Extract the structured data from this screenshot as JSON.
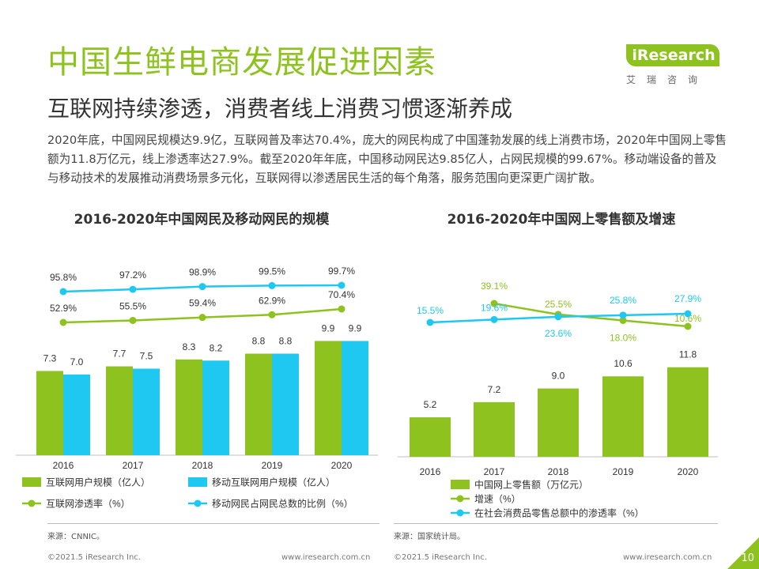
{
  "header": {
    "title": "中国生鲜电商发展促进因素",
    "subtitle": "互联网持续渗透，消费者线上消费习惯逐渐养成"
  },
  "logo": {
    "text": "iResearch",
    "cn": "艾瑞咨询"
  },
  "body_text": "2020年底，中国网民规模达9.9亿，互联网普及率达70.4%，庞大的网民构成了中国蓬勃发展的线上消费市场，2020年中国网上零售额为11.8万亿元，线上渗透率达27.9%。截至2020年年底，中国移动网民达9.85亿人，占网民规模的99.67%。移动端设备的普及与移动技术的发展推动消费场景多元化，互联网得以渗透居民生活的每个角落，服务范围向更深更广阔扩散。",
  "colors": {
    "green": "#8dc21f",
    "blue": "#1ec8f0"
  },
  "chart_data": [
    {
      "type": "bar",
      "title": "2016-2020年中国网民及移动网民的规模",
      "categories": [
        "2016",
        "2017",
        "2018",
        "2019",
        "2020"
      ],
      "series": [
        {
          "name": "互联网用户规模（亿人）",
          "kind": "bar",
          "color": "#8dc21f",
          "values": [
            7.3,
            7.7,
            8.3,
            8.8,
            9.9
          ],
          "labels": [
            "7.3",
            "7.7",
            "8.3",
            "8.8",
            "9.9"
          ]
        },
        {
          "name": "移动互联网用户规模（亿人）",
          "kind": "bar",
          "color": "#1ec8f0",
          "values": [
            7.0,
            7.5,
            8.2,
            8.8,
            9.9
          ],
          "labels": [
            "7.0",
            "7.5",
            "8.2",
            "8.8",
            "9.9"
          ]
        },
        {
          "name": "互联网渗透率（%）",
          "kind": "line",
          "color": "#8dc21f",
          "values": [
            52.9,
            55.5,
            59.4,
            62.9,
            70.4
          ],
          "labels": [
            "52.9%",
            "55.5%",
            "59.4%",
            "62.9%",
            "70.4%"
          ]
        },
        {
          "name": "移动网民占网民总数的比例（%）",
          "kind": "line",
          "color": "#1ec8f0",
          "values": [
            95.8,
            97.2,
            98.9,
            99.5,
            99.7
          ],
          "labels": [
            "95.8%",
            "97.2%",
            "98.9%",
            "99.5%",
            "99.7%"
          ]
        }
      ],
      "source": "来源：CNNIC。"
    },
    {
      "type": "bar",
      "title": "2016-2020年中国网上零售额及增速",
      "categories": [
        "2016",
        "2017",
        "2018",
        "2019",
        "2020"
      ],
      "series": [
        {
          "name": "中国网上零售额（万亿元）",
          "kind": "bar",
          "color": "#8dc21f",
          "values": [
            5.2,
            7.2,
            9.0,
            10.6,
            11.8
          ],
          "labels": [
            "5.2",
            "7.2",
            "9.0",
            "10.6",
            "11.8"
          ]
        },
        {
          "name": "增速（%）",
          "kind": "line",
          "color": "#8dc21f",
          "values": [
            null,
            39.1,
            25.5,
            18.0,
            10.6
          ],
          "labels": [
            "",
            "39.1%",
            "25.5%",
            "18.0%",
            "10.6%"
          ]
        },
        {
          "name": "在社会消费品零售总额中的渗透率（%）",
          "kind": "line",
          "color": "#1ec8f0",
          "values": [
            15.5,
            19.6,
            23.6,
            25.8,
            27.9
          ],
          "labels": [
            "15.5%",
            "19.6%",
            "23.6%",
            "25.8%",
            "27.9%"
          ]
        }
      ],
      "source": "来源：国家统计局。"
    }
  ],
  "footer": {
    "left_copyright": "©2021.5 iResearch Inc.",
    "left_url": "www.iresearch.com.cn",
    "right_copyright": "©2021.5 iResearch Inc.",
    "right_url": "www.iresearch.com.cn",
    "page": "10"
  }
}
